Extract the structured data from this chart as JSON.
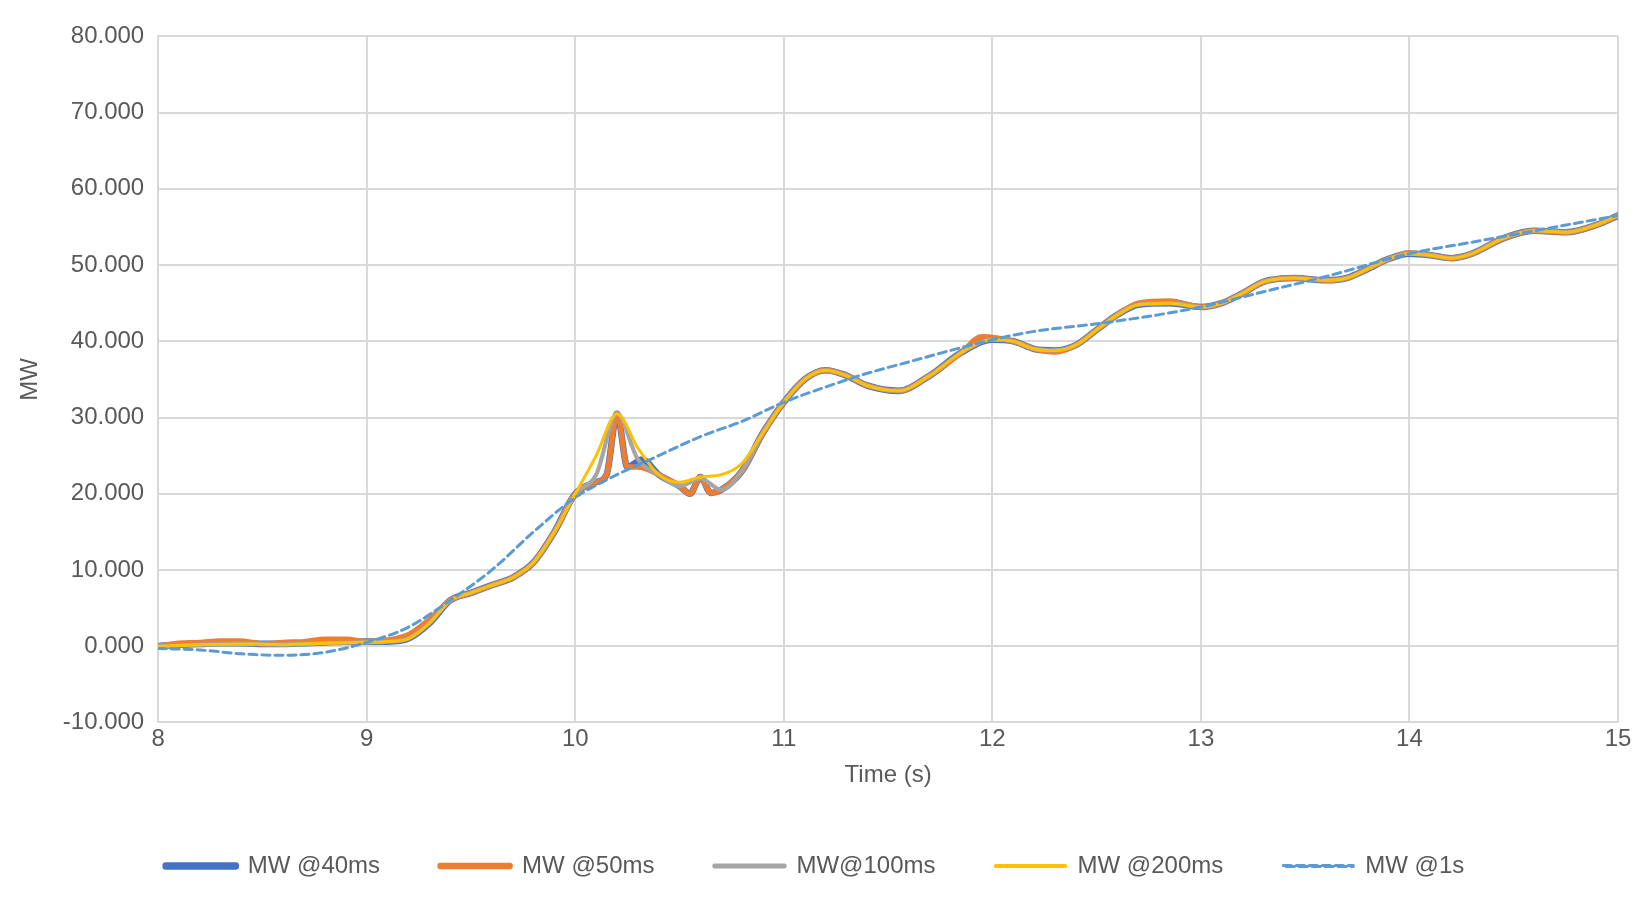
{
  "chart_data": {
    "type": "line",
    "xlabel": "Time (s)",
    "ylabel": "MW",
    "xlim": [
      8,
      15
    ],
    "ylim": [
      -10,
      80
    ],
    "xticks": [
      8,
      9,
      10,
      11,
      12,
      13,
      14,
      15
    ],
    "yticks": [
      {
        "value": -10,
        "label": "-10.000"
      },
      {
        "value": 0,
        "label": "0.000"
      },
      {
        "value": 10,
        "label": "10.000"
      },
      {
        "value": 20,
        "label": "20.000"
      },
      {
        "value": 30,
        "label": "30.000"
      },
      {
        "value": 40,
        "label": "40.000"
      },
      {
        "value": 50,
        "label": "50.000"
      },
      {
        "value": 60,
        "label": "60.000"
      },
      {
        "value": 70,
        "label": "70.000"
      },
      {
        "value": 80,
        "label": "80.000"
      }
    ],
    "grid": true,
    "legend": "bottom",
    "marker": "none",
    "line_style": "solid",
    "series": [
      {
        "name": "MW @40ms",
        "color": "#4472c4",
        "x": [
          8,
          8.1,
          8.2,
          8.3,
          8.4,
          8.5,
          8.6,
          8.7,
          8.8,
          8.9,
          9,
          9.1,
          9.2,
          9.3,
          9.4,
          9.5,
          9.6,
          9.7,
          9.8,
          9.9,
          10,
          10.1,
          10.15,
          10.2,
          10.25,
          10.32,
          10.4,
          10.5,
          10.55,
          10.6,
          10.65,
          10.7,
          10.8,
          10.9,
          11,
          11.1,
          11.2,
          11.3,
          11.4,
          11.55,
          11.7,
          11.85,
          12,
          12.1,
          12.2,
          12.3,
          12.4,
          12.5,
          12.6,
          12.7,
          12.85,
          13,
          13.1,
          13.2,
          13.3,
          13.45,
          13.6,
          13.7,
          13.8,
          13.9,
          14,
          14.1,
          14.2,
          14.3,
          14.45,
          14.6,
          14.75,
          14.9,
          15
        ],
        "values": [
          0,
          0.2,
          0.3,
          0.4,
          0.4,
          0.3,
          0.3,
          0.4,
          0.5,
          0.6,
          0.6,
          0.6,
          1,
          3,
          6,
          7,
          8,
          9,
          11,
          15,
          20,
          21.5,
          22.5,
          30.5,
          23.5,
          24.5,
          22.5,
          21,
          20,
          22.2,
          20.1,
          20.5,
          23,
          28,
          32,
          35,
          36.2,
          35.5,
          34.2,
          33.5,
          35.5,
          38.5,
          40.2,
          40,
          39,
          38.8,
          39.5,
          41.5,
          43.5,
          44.8,
          45,
          44.5,
          45,
          46.3,
          47.8,
          48.3,
          48,
          48.3,
          49.5,
          50.8,
          51.5,
          51.3,
          50.9,
          51.5,
          53.5,
          54.5,
          54.3,
          55.3,
          56.5
        ]
      },
      {
        "name": "MW @50ms",
        "color": "#ed7d31",
        "x": [
          8,
          8.1,
          8.2,
          8.3,
          8.4,
          8.5,
          8.6,
          8.7,
          8.8,
          8.9,
          9,
          9.1,
          9.2,
          9.3,
          9.4,
          9.5,
          9.6,
          9.7,
          9.8,
          9.9,
          10,
          10.1,
          10.15,
          10.2,
          10.25,
          10.3,
          10.4,
          10.5,
          10.55,
          10.6,
          10.65,
          10.7,
          10.8,
          10.9,
          11,
          11.1,
          11.2,
          11.3,
          11.4,
          11.55,
          11.7,
          11.85,
          11.95,
          12.1,
          12.2,
          12.3,
          12.4,
          12.5,
          12.6,
          12.7,
          12.85,
          13,
          13.1,
          13.2,
          13.3,
          13.45,
          13.6,
          13.7,
          13.8,
          13.9,
          14,
          14.1,
          14.2,
          14.3,
          14.45,
          14.6,
          14.75,
          14.9,
          15
        ],
        "values": [
          0,
          0.4,
          0.5,
          0.7,
          0.7,
          0.3,
          0.5,
          0.6,
          0.9,
          0.9,
          0.6,
          0.8,
          1.5,
          3.5,
          6,
          7,
          8,
          9,
          11,
          15,
          20,
          21.5,
          22.5,
          30.5,
          23.5,
          23.5,
          22.5,
          21,
          20,
          22.2,
          20.1,
          20.5,
          23,
          28,
          32,
          35,
          36.2,
          35.5,
          34.2,
          33.5,
          35.5,
          38.5,
          40.6,
          40,
          39,
          38.6,
          39.5,
          41.5,
          43.5,
          45,
          45.3,
          44.5,
          45,
          46.3,
          47.8,
          48.3,
          48,
          48.3,
          49.5,
          50.8,
          51.6,
          51.3,
          50.9,
          51.5,
          53.5,
          54.5,
          54.3,
          55.3,
          56.5
        ]
      },
      {
        "name": "MW@100ms",
        "color": "#a5a5a5",
        "x": [
          8,
          8.2,
          8.4,
          8.6,
          8.8,
          9,
          9.1,
          9.2,
          9.3,
          9.4,
          9.5,
          9.6,
          9.7,
          9.8,
          9.9,
          10,
          10.1,
          10.2,
          10.3,
          10.4,
          10.5,
          10.6,
          10.7,
          10.8,
          10.9,
          11,
          11.1,
          11.2,
          11.3,
          11.4,
          11.55,
          11.7,
          11.85,
          12,
          12.1,
          12.2,
          12.3,
          12.4,
          12.5,
          12.6,
          12.7,
          12.85,
          13,
          13.1,
          13.2,
          13.3,
          13.45,
          13.6,
          13.7,
          13.8,
          13.9,
          14,
          14.1,
          14.2,
          14.3,
          14.45,
          14.6,
          14.75,
          14.9,
          15
        ],
        "values": [
          0,
          0.2,
          0.3,
          0.2,
          0.4,
          0.5,
          0.6,
          1,
          3,
          6,
          7,
          8,
          9,
          11,
          15,
          20,
          22.5,
          30.5,
          24.5,
          22.5,
          21,
          22,
          20.5,
          23,
          28,
          32,
          35,
          36.2,
          35.5,
          34.2,
          33.5,
          35.5,
          38.5,
          40.2,
          40,
          39,
          38.8,
          39.5,
          41.5,
          43.5,
          44.8,
          45,
          44.5,
          45,
          46.3,
          47.8,
          48.3,
          48,
          48.3,
          49.5,
          50.8,
          51.5,
          51.3,
          50.9,
          51.5,
          53.5,
          54.5,
          54.3,
          55.3,
          56.5
        ]
      },
      {
        "name": "MW @200ms",
        "color": "#ffc000",
        "x": [
          8,
          8.2,
          8.4,
          8.6,
          8.8,
          9,
          9.1,
          9.2,
          9.3,
          9.4,
          9.5,
          9.6,
          9.7,
          9.8,
          9.9,
          10,
          10.1,
          10.2,
          10.3,
          10.4,
          10.5,
          10.6,
          10.7,
          10.8,
          10.9,
          11,
          11.1,
          11.2,
          11.3,
          11.4,
          11.55,
          11.7,
          11.85,
          12,
          12.1,
          12.2,
          12.3,
          12.4,
          12.5,
          12.6,
          12.7,
          12.85,
          13,
          13.1,
          13.2,
          13.3,
          13.45,
          13.6,
          13.7,
          13.8,
          13.9,
          14,
          14.1,
          14.2,
          14.3,
          14.45,
          14.6,
          14.75,
          14.9,
          15
        ],
        "values": [
          0,
          0.2,
          0.3,
          0.2,
          0.4,
          0.5,
          0.6,
          1,
          3,
          6,
          7,
          8,
          9,
          11,
          15,
          20,
          25,
          30.5,
          26,
          22.5,
          21.5,
          22.2,
          22.5,
          24,
          28,
          32,
          35,
          36.2,
          35.5,
          34.2,
          33.5,
          35.5,
          38.5,
          40.2,
          40,
          39,
          38.8,
          39.5,
          41.5,
          43.5,
          44.8,
          45,
          44.5,
          45,
          46.3,
          47.8,
          48.3,
          48,
          48.3,
          49.5,
          50.8,
          51.5,
          51.3,
          50.9,
          51.5,
          53.5,
          54.5,
          54.3,
          55.3,
          56.5
        ]
      },
      {
        "name": "MW @1s",
        "color": "#5b9bd5",
        "line_style": "dashed",
        "x": [
          8,
          8.2,
          8.4,
          8.6,
          8.8,
          9,
          9.2,
          9.4,
          9.6,
          9.8,
          10,
          10.2,
          10.4,
          10.6,
          10.8,
          11,
          11.2,
          11.4,
          11.6,
          11.8,
          12,
          12.2,
          12.5,
          12.8,
          13,
          13.3,
          13.6,
          14,
          14.3,
          14.6,
          15
        ],
        "values": [
          -0.3,
          -0.5,
          -1,
          -1.2,
          -0.8,
          0.5,
          2.5,
          6,
          10,
          15,
          19.5,
          22.5,
          25,
          27.5,
          29.5,
          32,
          34,
          35.8,
          37.3,
          38.8,
          40.2,
          41.3,
          42.3,
          43.5,
          44.5,
          46.5,
          48.5,
          51.5,
          53,
          54.5,
          56.5
        ]
      }
    ]
  }
}
